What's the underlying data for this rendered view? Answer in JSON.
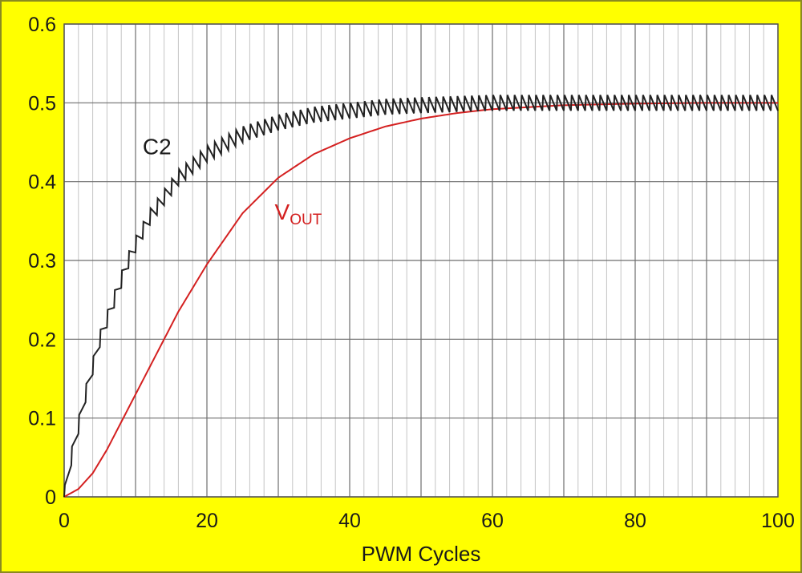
{
  "chart_data": {
    "type": "line",
    "xlabel": "PWM Cycles",
    "ylabel": "",
    "xlim": [
      0,
      100
    ],
    "ylim": [
      0,
      0.6
    ],
    "x_ticks": [
      "0",
      "20",
      "40",
      "60",
      "80",
      "100"
    ],
    "y_ticks": [
      "0",
      "0.1",
      "0.2",
      "0.3",
      "0.4",
      "0.5",
      "0.6"
    ],
    "grid": true,
    "legend": "none",
    "background_color": "#ffff00",
    "plot_background_color": "#ffffff",
    "series": [
      {
        "name": "C2",
        "color": "#222222",
        "note_shape": "sawtooth ripple",
        "x": [
          0,
          1,
          2,
          3,
          4,
          5,
          6,
          7,
          8,
          9,
          10,
          12,
          14,
          16,
          18,
          20,
          25,
          30,
          35,
          40,
          45,
          50,
          60,
          70,
          80,
          90,
          100
        ],
        "y": [
          0,
          0.05,
          0.09,
          0.13,
          0.165,
          0.2,
          0.225,
          0.25,
          0.275,
          0.3,
          0.32,
          0.355,
          0.38,
          0.405,
          0.42,
          0.435,
          0.46,
          0.475,
          0.485,
          0.49,
          0.495,
          0.497,
          0.5,
          0.5,
          0.5,
          0.5,
          0.5
        ],
        "ripple": 0.02
      },
      {
        "name": "VOUT",
        "color": "#d42020",
        "x": [
          0,
          2,
          4,
          6,
          8,
          10,
          12,
          14,
          16,
          18,
          20,
          25,
          30,
          35,
          40,
          45,
          50,
          55,
          60,
          70,
          80,
          90,
          100
        ],
        "y": [
          0,
          0.01,
          0.03,
          0.06,
          0.095,
          0.13,
          0.165,
          0.2,
          0.235,
          0.265,
          0.295,
          0.36,
          0.405,
          0.435,
          0.455,
          0.47,
          0.48,
          0.487,
          0.492,
          0.497,
          0.499,
          0.5,
          0.5
        ]
      }
    ],
    "annotations": [
      {
        "text": "C2",
        "color": "#1a1a1a"
      },
      {
        "text": "V",
        "sub": "OUT",
        "color": "#d42020"
      }
    ]
  }
}
